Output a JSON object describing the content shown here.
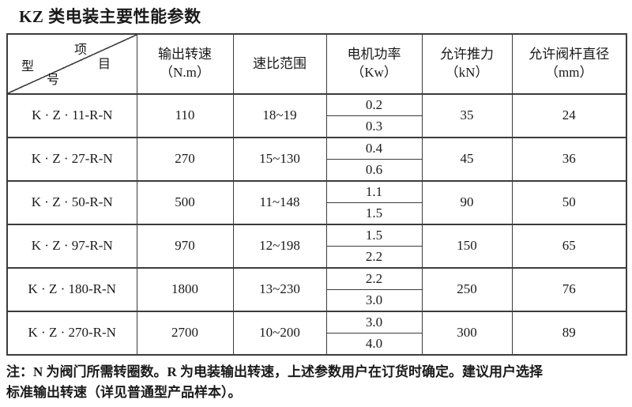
{
  "title": "KZ 类电装主要性能参数",
  "table": {
    "corner": {
      "item_char1": "项",
      "item_char2": "目",
      "model_char1": "型",
      "model_char2": "号"
    },
    "headers": {
      "output_speed": {
        "line1": "输出转速",
        "line2": "（N.m）"
      },
      "ratio_range": {
        "line1": "速比范围",
        "line2": ""
      },
      "motor_power": {
        "line1": "电机功率",
        "line2": "（Kw）"
      },
      "allowed_thrust": {
        "line1": "允许推力",
        "line2": "（kN）"
      },
      "allowed_stem_dia": {
        "line1": "允许阀杆直径",
        "line2": "（mm）"
      }
    },
    "rows": [
      {
        "model": "K · Z · 11-R-N",
        "output_speed": "110",
        "ratio_range": "18~19",
        "power_1": "0.2",
        "power_2": "0.3",
        "thrust": "35",
        "stem_dia": "24"
      },
      {
        "model": "K · Z · 27-R-N",
        "output_speed": "270",
        "ratio_range": "15~130",
        "power_1": "0.4",
        "power_2": "0.6",
        "thrust": "45",
        "stem_dia": "36"
      },
      {
        "model": "K · Z · 50-R-N",
        "output_speed": "500",
        "ratio_range": "11~148",
        "power_1": "1.1",
        "power_2": "1.5",
        "thrust": "90",
        "stem_dia": "50"
      },
      {
        "model": "K · Z · 97-R-N",
        "output_speed": "970",
        "ratio_range": "12~198",
        "power_1": "1.5",
        "power_2": "2.2",
        "thrust": "150",
        "stem_dia": "65"
      },
      {
        "model": "K · Z · 180-R-N",
        "output_speed": "1800",
        "ratio_range": "13~230",
        "power_1": "2.2",
        "power_2": "3.0",
        "thrust": "250",
        "stem_dia": "76"
      },
      {
        "model": "K · Z · 270-R-N",
        "output_speed": "2700",
        "ratio_range": "10~200",
        "power_1": "3.0",
        "power_2": "4.0",
        "thrust": "300",
        "stem_dia": "89"
      }
    ]
  },
  "note": {
    "line1": "注：N 为阀门所需转圈数。R 为电装输出转速，上述参数用户在订货时确定。建议用户选择",
    "line2": "标准输出转速（详见普通型产品样本）。"
  }
}
